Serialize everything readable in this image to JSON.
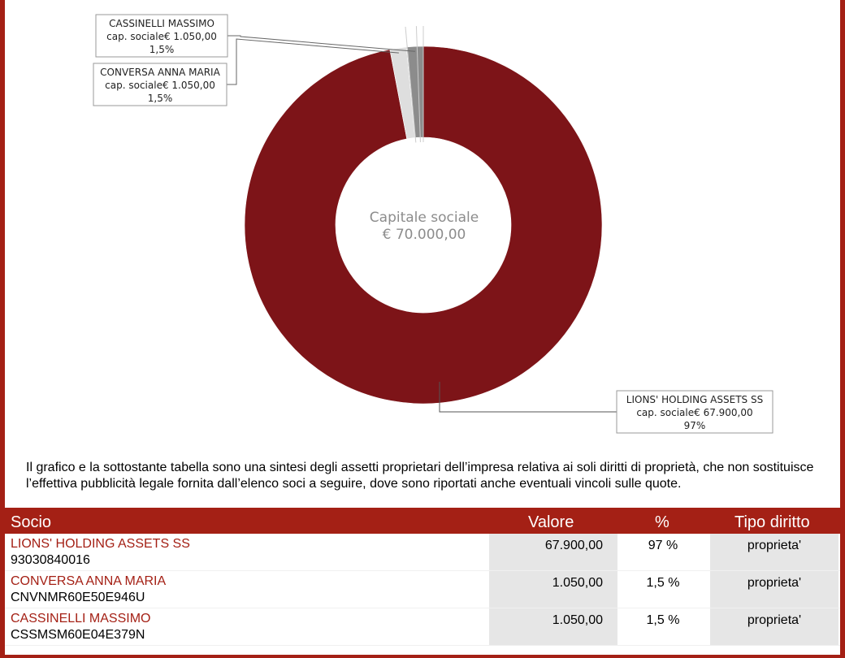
{
  "chart_data": {
    "type": "pie",
    "center_label": [
      "Capitale sociale",
      "€ 70.000,00"
    ],
    "slices": [
      {
        "name": "LIONS' HOLDING ASSETS SS",
        "detail": "cap. sociale€ 67.900,00",
        "pct_label": "97%",
        "value": 67900,
        "color": "#7d1418"
      },
      {
        "name": "CONVERSA ANNA MARIA",
        "detail": "cap. sociale€ 1.050,00",
        "pct_label": "1,5%",
        "value": 1050,
        "color": "#dedede"
      },
      {
        "name": "CASSINELLI MASSIMO",
        "detail": "cap. sociale€ 1.050,00",
        "pct_label": "1,5%",
        "value": 1050,
        "color": "#8c8c8c"
      }
    ]
  },
  "description": "Il grafico e la sottostante tabella sono una sintesi degli assetti proprietari dell’impresa relativa ai soli diritti di proprietà, che non sostituisce l’effettiva pubblicità legale fornita dall’elenco soci a seguire, dove sono riportati anche eventuali vincoli sulle quote.",
  "table": {
    "headers": {
      "socio": "Socio",
      "valore": "Valore",
      "pct": "%",
      "tipo": "Tipo diritto"
    },
    "rows": [
      {
        "name": "LIONS' HOLDING ASSETS SS",
        "code": "93030840016",
        "valore": "67.900,00",
        "pct": "97 %",
        "tipo": "proprieta'"
      },
      {
        "name": "CONVERSA ANNA MARIA",
        "code": "CNVNMR60E50E946U",
        "valore": "1.050,00",
        "pct": "1,5 %",
        "tipo": "proprieta'"
      },
      {
        "name": "CASSINELLI MASSIMO",
        "code": "CSSMSM60E04E379N",
        "valore": "1.050,00",
        "pct": "1,5 %",
        "tipo": "proprieta'"
      }
    ]
  }
}
